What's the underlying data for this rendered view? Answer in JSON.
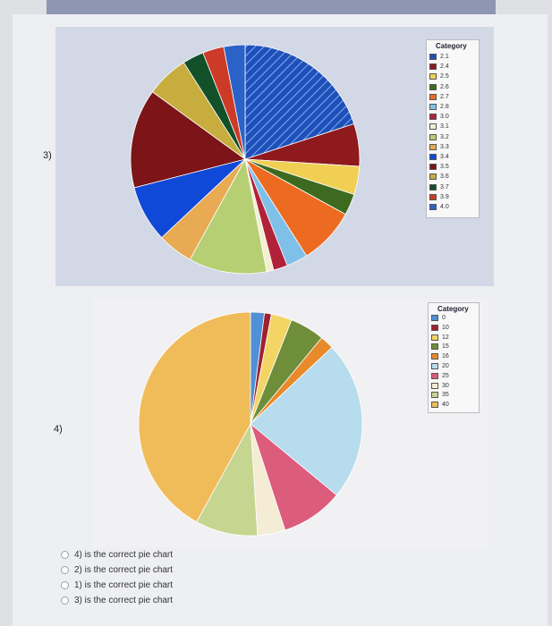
{
  "questions": [
    {
      "number": "3)"
    },
    {
      "number": "4)"
    }
  ],
  "chart_data": [
    {
      "type": "pie",
      "legend_title": "Category",
      "legend_placement": "right",
      "categories": [
        "2.1",
        "2.4",
        "2.5",
        "2.6",
        "2.7",
        "2.8",
        "3.0",
        "3.1",
        "3.2",
        "3.3",
        "3.4",
        "3.5",
        "3.6",
        "3.7",
        "3.9",
        "4.0"
      ],
      "colors": [
        "#1f4fb8",
        "#8e1a1e",
        "#f0cf52",
        "#3d6a1e",
        "#ec6b20",
        "#7fc0e8",
        "#b0223a",
        "#f2f0d0",
        "#b6cf72",
        "#e8aa52",
        "#1048d8",
        "#7c1418",
        "#c6ad3e",
        "#12502a",
        "#cc3a28",
        "#2a62c8"
      ],
      "values": [
        20,
        6,
        4,
        3,
        8,
        3,
        2,
        1,
        11,
        5,
        8,
        14,
        6,
        3,
        3,
        3
      ]
    },
    {
      "type": "pie",
      "legend_title": "Category",
      "legend_placement": "right",
      "categories": [
        "0",
        "10",
        "12",
        "15",
        "16",
        "20",
        "25",
        "30",
        "35",
        "40"
      ],
      "colors": [
        "#4f90d6",
        "#a02030",
        "#f2d565",
        "#6e8e3a",
        "#e8892a",
        "#b6dcee",
        "#dc5c7c",
        "#f4ecd4",
        "#c6d590",
        "#f0bc5a"
      ],
      "values": [
        2,
        1,
        3,
        5,
        2,
        23,
        9,
        4,
        9,
        42
      ]
    }
  ],
  "answers": [
    {
      "label": "4) is the correct pie chart"
    },
    {
      "label": "2) is the correct pie chart"
    },
    {
      "label": "1) is the correct pie chart"
    },
    {
      "label": "3) is the correct pie chart"
    }
  ]
}
